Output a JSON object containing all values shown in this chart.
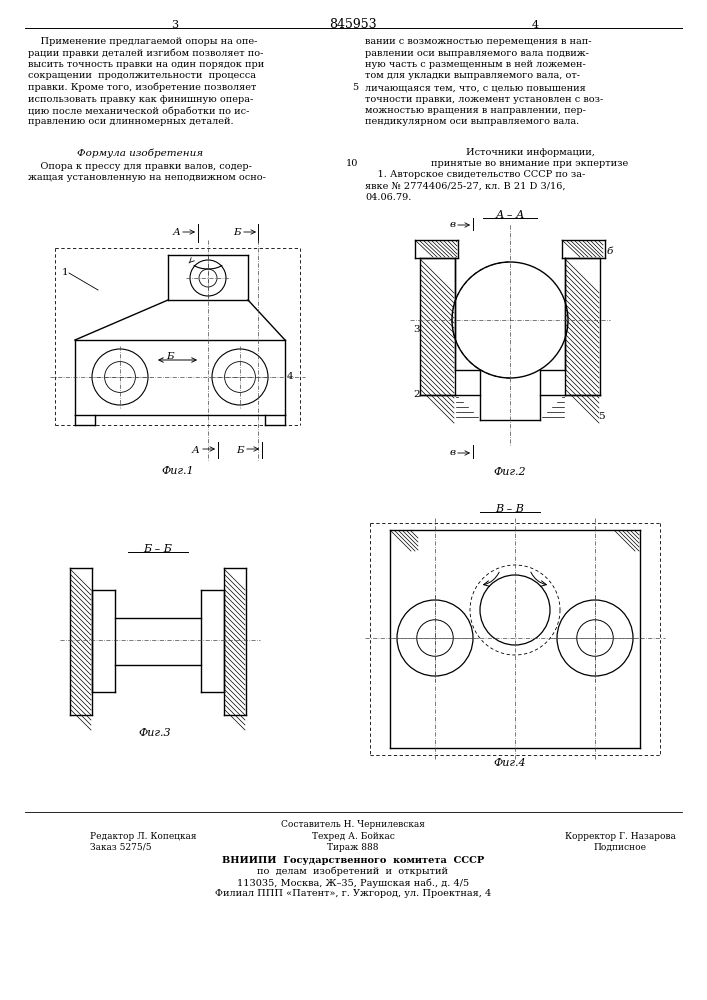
{
  "page_number_left": "3",
  "page_number_center": "845953",
  "page_number_right": "4",
  "bg_color": "#ffffff",
  "text_color": "#000000",
  "left_col_text": [
    "    Применение предлагаемой опоры на опе-",
    "рации правки деталей изгибом позволяет по-",
    "высить точность правки на один порядок при",
    "сокращении  продолжительности  процесса",
    "правки. Кроме того, изобретение позволяет",
    "использовать правку как финишную опера-",
    "цию после механической обработки по ис-",
    "правлению оси длинномерных деталей."
  ],
  "right_col_text": [
    "вании с возможностью перемещения в нап-",
    "равлении оси выправляемого вала подвиж-",
    "ную часть с размещенным в ней ложемен-",
    "том для укладки выправляемого вала, от-",
    "личающаяся тем, что, с целью повышения",
    "точности правки, ложемент установлен с воз-",
    "можностью вращения в направлении, пер-",
    "пендикулярном оси выправляемого вала."
  ],
  "formula_header": "Формула изобретения",
  "formula_text": [
    "    Опора к прессу для правки валов, содер-",
    "жащая установленную на неподвижном осно-"
  ],
  "sources_header": "Источники информации,",
  "sources_subheader": "принятые во внимание при экпертизе",
  "sources_items": [
    "    1. Авторское свидетельство СССР по за-",
    "явке № 2774406/25-27, кл. В 21 D 3/16,",
    "04.06.79."
  ],
  "fig1_label": "Фиг.1",
  "fig2_label": "Фиг.2",
  "fig3_label": "Фиг.3",
  "fig4_label": "Фиг.4",
  "footer_composer": "Составитель Н. Чернилевская",
  "footer_editor": "Редактор Л. Копецкая",
  "footer_techred": "Техред А. Бойкас",
  "footer_corrector": "Корректор Г. Назарова",
  "footer_order": "Заказ 5275/5",
  "footer_tirazh": "Тираж 888",
  "footer_podpisnoe": "Подписное",
  "footer_vniip1": "ВНИИПИ  Государственного  комитета  СССР",
  "footer_vniip2": "по  делам  изобретений  и  открытий",
  "footer_vniip3": "113035, Москва, Ж–35, Раушская наб., д. 4/5",
  "footer_vniip4": "Филиал ППП «Патент», г. Ужгород, ул. Проектная, 4"
}
